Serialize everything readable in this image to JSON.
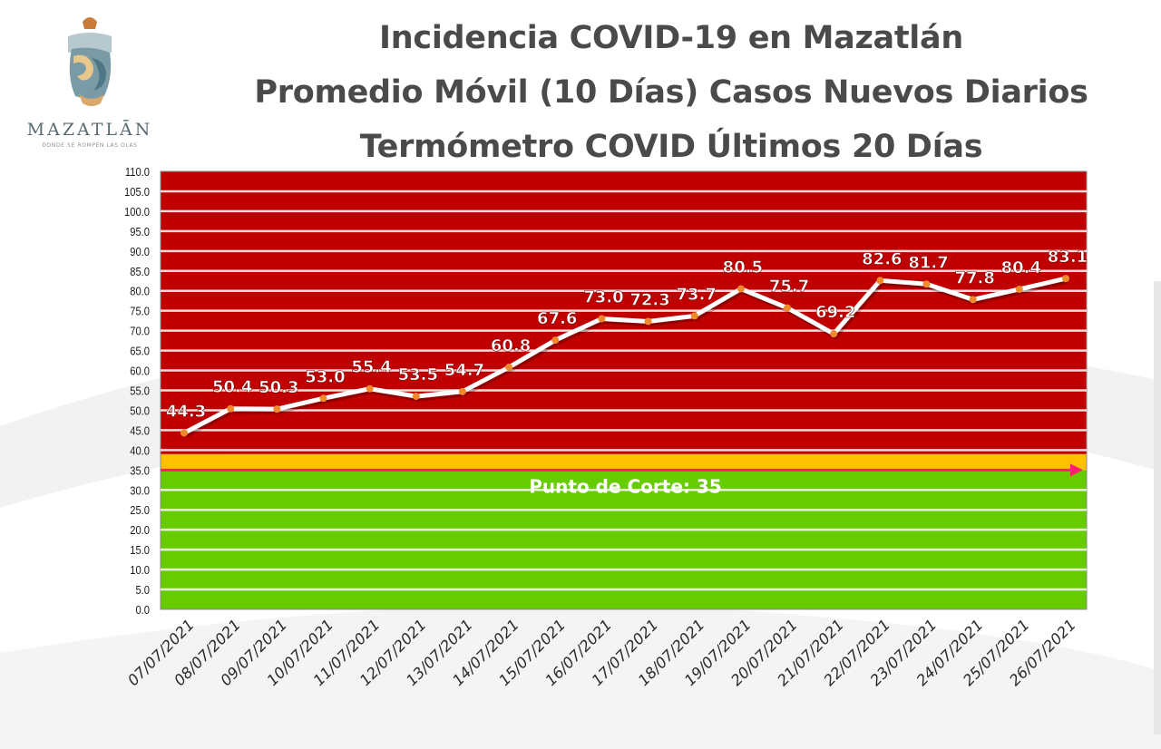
{
  "logo": {
    "name": "MAZATLĀN",
    "tagline": "DONDE SE ROMPEN LAS OLAS"
  },
  "titles": [
    "Incidencia COVID-19 en Mazatlán",
    "Promedio Móvil (10 Días) Casos Nuevos Diarios",
    "Termómetro COVID Últimos 20 Días"
  ],
  "chart_data": {
    "type": "line",
    "title": "Incidencia COVID-19 en Mazatlán",
    "subtitle": "Promedio Móvil (10 Días) Casos Nuevos Diarios — Termómetro COVID Últimos 20 Días",
    "categories": [
      "07/07/2021",
      "08/07/2021",
      "09/07/2021",
      "10/07/2021",
      "11/07/2021",
      "12/07/2021",
      "13/07/2021",
      "14/07/2021",
      "15/07/2021",
      "16/07/2021",
      "17/07/2021",
      "18/07/2021",
      "19/07/2021",
      "20/07/2021",
      "21/07/2021",
      "22/07/2021",
      "23/07/2021",
      "24/07/2021",
      "25/07/2021",
      "26/07/2021"
    ],
    "values": [
      44.3,
      50.4,
      50.3,
      53.0,
      55.4,
      53.5,
      54.7,
      60.8,
      67.6,
      73.0,
      72.3,
      73.7,
      80.5,
      75.7,
      69.2,
      82.6,
      81.7,
      77.8,
      80.4,
      83.1
    ],
    "value_labels": [
      "44.3",
      "50.4",
      "50.3",
      "53.0",
      "55.4",
      "53.5",
      "54.7",
      "60.8",
      "67.6",
      "73.0",
      "72.3",
      "73.7",
      "80.5",
      "75.7",
      "69.2",
      "82.6",
      "81.7",
      "77.8",
      "80.4",
      "83.1"
    ],
    "ylim": [
      0,
      110
    ],
    "ytick_step": 5,
    "yticks": [
      "0.0",
      "5.0",
      "10.0",
      "15.0",
      "20.0",
      "25.0",
      "30.0",
      "35.0",
      "40.0",
      "45.0",
      "50.0",
      "55.0",
      "60.0",
      "65.0",
      "70.0",
      "75.0",
      "80.0",
      "85.0",
      "90.0",
      "95.0",
      "100.0",
      "105.0",
      "110.0"
    ],
    "xlabel": "",
    "ylabel": "",
    "grid": true,
    "zones": [
      {
        "from": 0,
        "to": 35,
        "color": "#66cc00"
      },
      {
        "from": 35,
        "to": 39,
        "color": "#ffc000"
      },
      {
        "from": 39,
        "to": 110,
        "color": "#c00000"
      }
    ],
    "threshold": {
      "value": 35,
      "label": "Punto de Corte: 35",
      "color": "#ff1f6e"
    },
    "line_color": "#ffffff",
    "marker_color": "#f08a2c"
  }
}
